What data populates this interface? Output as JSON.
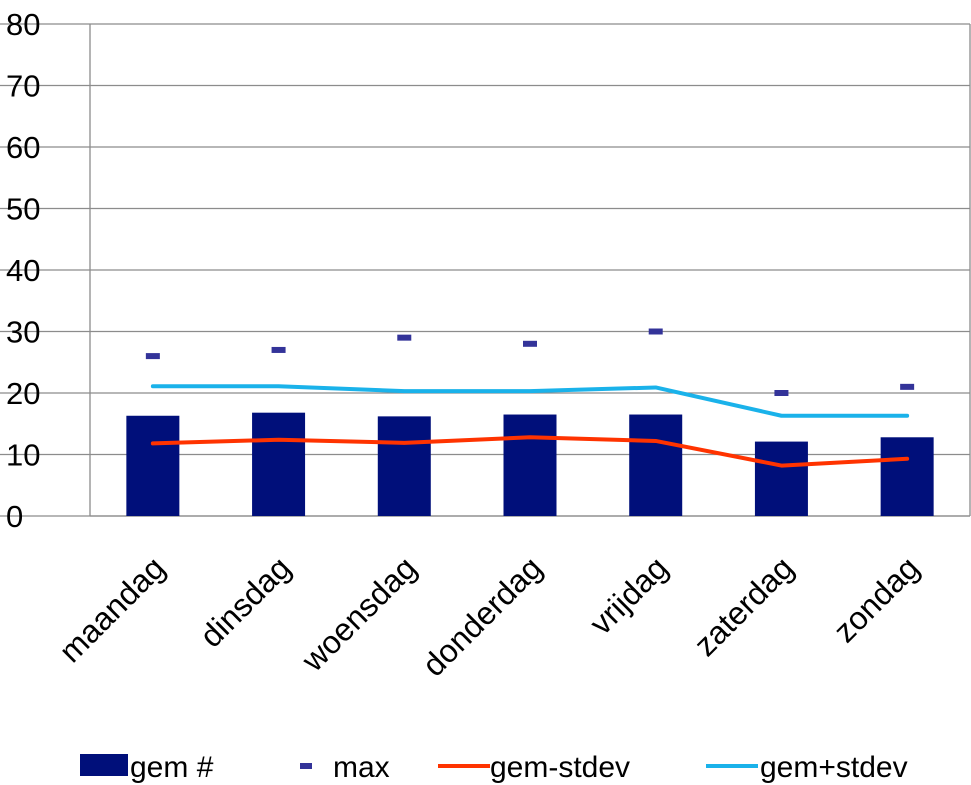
{
  "chart_data": {
    "type": "bar",
    "categories": [
      "maandag",
      "dinsdag",
      "woensdag",
      "donderdag",
      "vrijdag",
      "zaterdag",
      "zondag"
    ],
    "ylim": [
      0,
      80
    ],
    "yticks": [
      0,
      10,
      20,
      30,
      40,
      50,
      60,
      70,
      80
    ],
    "grid": true,
    "legend_position": "bottom",
    "series": [
      {
        "name": "gem #",
        "kind": "bar",
        "color": "#000f7a",
        "values": [
          16.3,
          16.8,
          16.2,
          16.5,
          16.5,
          12.1,
          12.8
        ]
      },
      {
        "name": "max",
        "kind": "marker",
        "color": "#333399",
        "values": [
          26,
          27,
          29,
          28,
          30,
          20,
          21
        ]
      },
      {
        "name": "gem-stdev",
        "kind": "line",
        "color": "#ff3300",
        "values": [
          11.8,
          12.4,
          11.9,
          12.8,
          12.2,
          8.2,
          9.3
        ]
      },
      {
        "name": "gem+stdev",
        "kind": "line",
        "color": "#1ab2ea",
        "values": [
          21.1,
          21.1,
          20.3,
          20.3,
          20.9,
          16.3,
          16.3
        ]
      }
    ]
  }
}
